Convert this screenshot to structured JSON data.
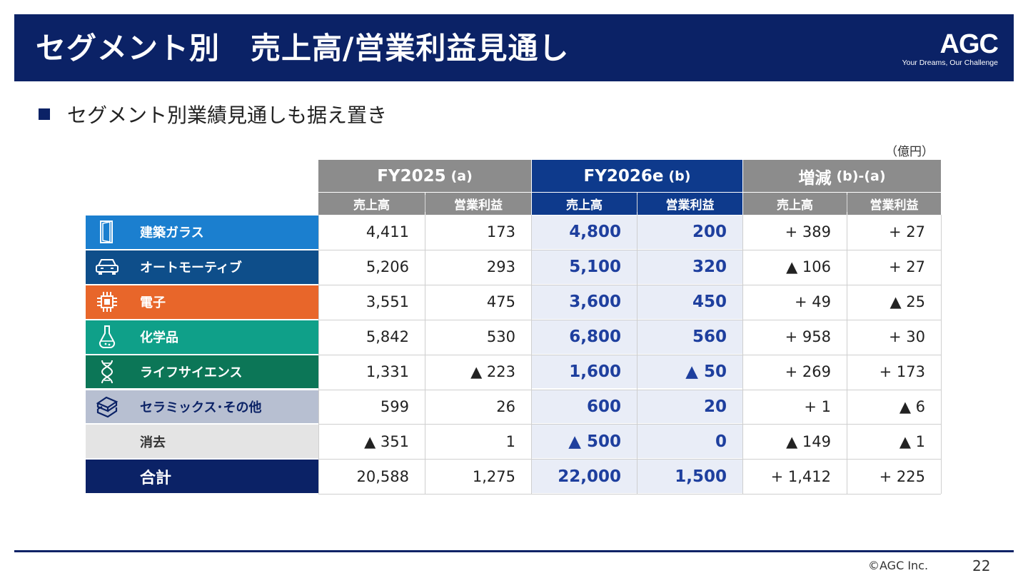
{
  "header": {
    "title": "セグメント別　売上高/営業利益見通し",
    "logo": "AGC",
    "tagline": "Your Dreams, Our Challenge"
  },
  "bullet": "セグメント別業績見通しも据え置き",
  "unit": "（億円）",
  "table": {
    "groups": [
      {
        "label": "FY2025",
        "suffix": "(a)"
      },
      {
        "label": "FY2026e",
        "suffix": "(b)"
      },
      {
        "label": "増減",
        "suffix": "(b)-(a)"
      }
    ],
    "subheaders": [
      "売上高",
      "営業利益",
      "売上高",
      "営業利益",
      "売上高",
      "営業利益"
    ],
    "rows": [
      {
        "label": "建築ガラス",
        "icon": "glass-door-icon",
        "color": "#1b7fcf",
        "values": [
          "4,411",
          "173",
          "4,800",
          "200",
          "+ 389",
          "+ 27"
        ]
      },
      {
        "label": "オートモーティブ",
        "icon": "car-icon",
        "color": "#0e4e8a",
        "values": [
          "5,206",
          "293",
          "5,100",
          "320",
          "▲ 106",
          "+ 27"
        ]
      },
      {
        "label": "電子",
        "icon": "chip-icon",
        "color": "#e8662a",
        "values": [
          "3,551",
          "475",
          "3,600",
          "450",
          "+ 49",
          "▲ 25"
        ]
      },
      {
        "label": "化学品",
        "icon": "flask-icon",
        "color": "#0fa089",
        "values": [
          "5,842",
          "530",
          "6,800",
          "560",
          "+ 958",
          "+ 30"
        ]
      },
      {
        "label": "ライフサイエンス",
        "icon": "dna-icon",
        "color": "#0c7657",
        "values": [
          "1,331",
          "▲ 223",
          "1,600",
          "▲ 50",
          "+ 269",
          "+ 173"
        ]
      },
      {
        "label": "セラミックス･その他",
        "icon": "ceramic-blocks-icon",
        "color": "#b7bfd1",
        "values": [
          "599",
          "26",
          "600",
          "20",
          "+ 1",
          "▲ 6"
        ]
      },
      {
        "label": "消去",
        "icon": "",
        "color": "#e4e4e4",
        "values": [
          "▲ 351",
          "1",
          "▲ 500",
          "0",
          "▲ 149",
          "▲ 1"
        ]
      },
      {
        "label": "合計",
        "icon": "",
        "color": "#0b2266",
        "values": [
          "20,588",
          "1,275",
          "22,000",
          "1,500",
          "+ 1,412",
          "+ 225"
        ]
      }
    ]
  },
  "footer": {
    "copyright": "©AGC Inc.",
    "page": "22"
  }
}
